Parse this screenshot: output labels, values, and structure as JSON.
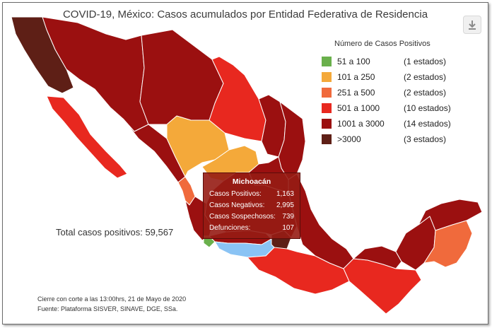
{
  "title": "COVID-19, México: Casos acumulados por Entidad Federativa de Residencia",
  "legend": {
    "title": "Número de Casos Positivos",
    "items": [
      {
        "range": "51 a 100",
        "count": "(1 estados)",
        "color": "#6ab04c"
      },
      {
        "range": "101 a 250",
        "count": "(2 estados)",
        "color": "#f4a93a"
      },
      {
        "range": "251 a 500",
        "count": "(2 estados)",
        "color": "#f06a3c"
      },
      {
        "range": "501 a 1000",
        "count": "(10 estados)",
        "color": "#e8281f"
      },
      {
        "range": "1001 a 3000",
        "count": "(14 estados)",
        "color": "#9b1010"
      },
      {
        "range": ">3000",
        "count": "(3 estados)",
        "color": "#5e1f16"
      }
    ]
  },
  "tooltip": {
    "state": "Michoacán",
    "rows": [
      {
        "label": "Casos Positivos:",
        "value": "1,163"
      },
      {
        "label": "Casos Negativos:",
        "value": "2,995"
      },
      {
        "label": "Casos Sospechosos:",
        "value": "739"
      },
      {
        "label": "Defunciones:",
        "value": "107"
      }
    ]
  },
  "total": "Total casos positivos: 59,567",
  "footnote": {
    "cutoff": "Cierre con corte a las 13:00hrs, 21 de Mayo de 2020",
    "source": "Fuente: Plataforma SISVER, SINAVE, DGE, SSa."
  },
  "icons": {
    "download": "download-icon"
  }
}
